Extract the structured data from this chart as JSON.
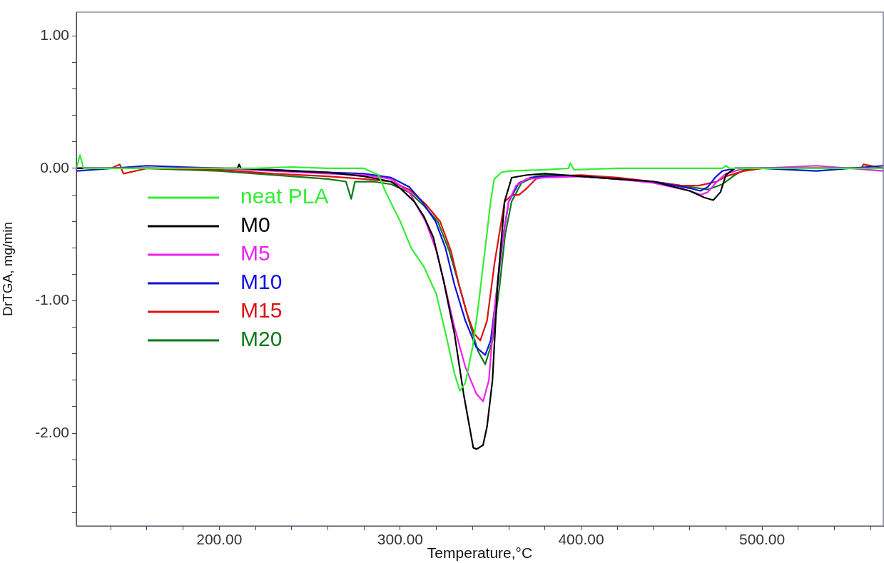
{
  "chart_data": {
    "type": "line",
    "xlabel": "Temperature,°C",
    "ylabel": "DrTGA, mg/min",
    "xlim": [
      121,
      567
    ],
    "ylim": [
      -2.7,
      1.18
    ],
    "xticks": [
      {
        "value": 140,
        "label": null
      },
      {
        "value": 160,
        "label": null
      },
      {
        "value": 180,
        "label": null
      },
      {
        "value": 200,
        "label": "200.00"
      },
      {
        "value": 220,
        "label": null
      },
      {
        "value": 240,
        "label": null
      },
      {
        "value": 260,
        "label": null
      },
      {
        "value": 280,
        "label": null
      },
      {
        "value": 300,
        "label": "300.00"
      },
      {
        "value": 320,
        "label": null
      },
      {
        "value": 340,
        "label": null
      },
      {
        "value": 360,
        "label": null
      },
      {
        "value": 380,
        "label": null
      },
      {
        "value": 400,
        "label": "400.00"
      },
      {
        "value": 420,
        "label": null
      },
      {
        "value": 440,
        "label": null
      },
      {
        "value": 460,
        "label": null
      },
      {
        "value": 480,
        "label": null
      },
      {
        "value": 500,
        "label": "500.00"
      },
      {
        "value": 520,
        "label": null
      },
      {
        "value": 540,
        "label": null
      },
      {
        "value": 560,
        "label": null
      }
    ],
    "yticks": [
      {
        "value": -2.6,
        "label": null
      },
      {
        "value": -2.4,
        "label": null
      },
      {
        "value": -2.2,
        "label": null
      },
      {
        "value": -2,
        "label": "-2.00"
      },
      {
        "value": -1.8,
        "label": null
      },
      {
        "value": -1.6,
        "label": null
      },
      {
        "value": -1.4,
        "label": null
      },
      {
        "value": -1.2,
        "label": null
      },
      {
        "value": -1,
        "label": "-1.00"
      },
      {
        "value": -0.8,
        "label": null
      },
      {
        "value": -0.6,
        "label": null
      },
      {
        "value": -0.4,
        "label": null
      },
      {
        "value": -0.2,
        "label": null
      },
      {
        "value": 0,
        "label": "0.00"
      },
      {
        "value": 0.2,
        "label": null
      },
      {
        "value": 0.4,
        "label": null
      },
      {
        "value": 0.6,
        "label": null
      },
      {
        "value": 0.8,
        "label": null
      },
      {
        "value": 1,
        "label": "1.00"
      }
    ],
    "grid": false,
    "legend": "center left",
    "marker": "none",
    "line_style": "solid",
    "series": [
      {
        "name": "neat PLA",
        "color": "#33ee33",
        "x": [
          121,
          123,
          125,
          140,
          160,
          180,
          200,
          220,
          240,
          260,
          280,
          288,
          292,
          300,
          306,
          313,
          320,
          326,
          330,
          333,
          336,
          340,
          343,
          347,
          350,
          352,
          356,
          360,
          380,
          393,
          394,
          396,
          420,
          450,
          470,
          478,
          480,
          482,
          500,
          530,
          567
        ],
        "values": [
          0.0,
          0.1,
          0.0,
          0.0,
          0.0,
          0.0,
          0.0,
          0.0,
          0.01,
          0.0,
          0.0,
          -0.05,
          -0.18,
          -0.4,
          -0.6,
          -0.74,
          -0.95,
          -1.3,
          -1.55,
          -1.68,
          -1.62,
          -1.35,
          -1.06,
          -0.6,
          -0.25,
          -0.08,
          -0.03,
          -0.02,
          -0.01,
          0.0,
          0.04,
          -0.01,
          0.0,
          0.0,
          0.0,
          0.0,
          0.02,
          0.0,
          0.0,
          0.0,
          0.0
        ]
      },
      {
        "name": "M0",
        "color": "#000000",
        "x": [
          121,
          160,
          200,
          210,
          211,
          212,
          240,
          260,
          280,
          295,
          300,
          307.7,
          313,
          318.3,
          324,
          330,
          335,
          340.4,
          342.3,
          345.8,
          348,
          351,
          353.8,
          357.7,
          361.6,
          370,
          380,
          400,
          420,
          440,
          460,
          468,
          473,
          477,
          480,
          485,
          500,
          530,
          567
        ],
        "values": [
          0.0,
          0.0,
          0.0,
          0.0,
          0.03,
          0.0,
          -0.02,
          -0.03,
          -0.06,
          -0.1,
          -0.15,
          -0.25,
          -0.36,
          -0.52,
          -0.85,
          -1.25,
          -1.7,
          -2.11,
          -2.12,
          -2.09,
          -1.95,
          -1.6,
          -0.88,
          -0.25,
          -0.07,
          -0.05,
          -0.04,
          -0.06,
          -0.08,
          -0.1,
          -0.17,
          -0.22,
          -0.24,
          -0.18,
          -0.05,
          0.0,
          0.0,
          0.0,
          0.0
        ]
      },
      {
        "name": "M5",
        "color": "#ee22ee",
        "x": [
          121,
          160,
          200,
          230,
          260,
          280,
          295,
          305,
          314,
          320,
          324.6,
          330,
          336,
          342,
          345.8,
          349,
          352.2,
          356,
          360,
          364,
          370,
          380,
          400,
          420,
          440,
          460,
          466,
          470,
          475,
          480,
          490,
          500,
          530,
          567
        ],
        "values": [
          0.0,
          0.0,
          0.0,
          -0.02,
          -0.04,
          -0.05,
          -0.08,
          -0.18,
          -0.4,
          -0.62,
          -0.88,
          -1.2,
          -1.5,
          -1.7,
          -1.76,
          -1.6,
          -1.06,
          -0.6,
          -0.25,
          -0.13,
          -0.08,
          -0.07,
          -0.06,
          -0.08,
          -0.11,
          -0.17,
          -0.2,
          -0.18,
          -0.1,
          -0.04,
          0.0,
          0.0,
          0.02,
          -0.02
        ]
      },
      {
        "name": "M10",
        "color": "#1010dd",
        "x": [
          121,
          160,
          200,
          230,
          260,
          280,
          295,
          305,
          312,
          319.5,
          325,
          330,
          336,
          342,
          347,
          350,
          353.8,
          357,
          360,
          365.6,
          372,
          380,
          400,
          420,
          440,
          460,
          466,
          470,
          474,
          478,
          485,
          500,
          530,
          567
        ],
        "values": [
          -0.02,
          0.02,
          0.0,
          -0.01,
          -0.03,
          -0.04,
          -0.07,
          -0.14,
          -0.25,
          -0.4,
          -0.6,
          -0.88,
          -1.15,
          -1.35,
          -1.41,
          -1.3,
          -0.88,
          -0.5,
          -0.25,
          -0.11,
          -0.07,
          -0.06,
          -0.06,
          -0.08,
          -0.1,
          -0.15,
          -0.17,
          -0.14,
          -0.07,
          -0.02,
          0.0,
          0.0,
          -0.02,
          0.02
        ]
      },
      {
        "name": "M15",
        "color": "#dd1111",
        "x": [
          121,
          140,
          145,
          147,
          160,
          200,
          230,
          260,
          280,
          295,
          305,
          314,
          322,
          328,
          332.5,
          337,
          341,
          344.3,
          348,
          352.2,
          357.7,
          362,
          365.6,
          370,
          375,
          380,
          400,
          420,
          440,
          455,
          465,
          475,
          480,
          490,
          500,
          530,
          555,
          556,
          567
        ],
        "values": [
          0.0,
          0.0,
          0.03,
          -0.04,
          0.0,
          -0.01,
          -0.04,
          -0.06,
          -0.08,
          -0.1,
          -0.16,
          -0.27,
          -0.4,
          -0.62,
          -0.88,
          -1.1,
          -1.25,
          -1.3,
          -1.15,
          -0.71,
          -0.25,
          -0.2,
          -0.2,
          -0.15,
          -0.08,
          -0.06,
          -0.05,
          -0.07,
          -0.1,
          -0.13,
          -0.13,
          -0.1,
          -0.06,
          -0.02,
          0.0,
          0.0,
          0.0,
          0.03,
          0.0
        ]
      },
      {
        "name": "M20",
        "color": "#0a7a1a",
        "x": [
          121,
          160,
          200,
          220,
          240,
          260,
          270,
          272.9,
          275,
          285,
          295,
          305,
          313,
          320.7,
          327,
          332.5,
          338,
          343,
          347,
          351,
          355,
          358,
          361.6,
          367,
          375,
          380,
          400,
          420,
          440,
          460,
          470,
          478,
          485,
          490,
          500,
          530,
          567
        ],
        "values": [
          0.0,
          0.0,
          -0.02,
          -0.04,
          -0.06,
          -0.08,
          -0.1,
          -0.23,
          -0.1,
          -0.1,
          -0.12,
          -0.18,
          -0.28,
          -0.4,
          -0.62,
          -0.88,
          -1.15,
          -1.38,
          -1.48,
          -1.3,
          -0.88,
          -0.5,
          -0.25,
          -0.11,
          -0.06,
          -0.05,
          -0.06,
          -0.08,
          -0.1,
          -0.14,
          -0.16,
          -0.12,
          -0.05,
          -0.01,
          0.0,
          0.0,
          0.0
        ]
      }
    ]
  }
}
